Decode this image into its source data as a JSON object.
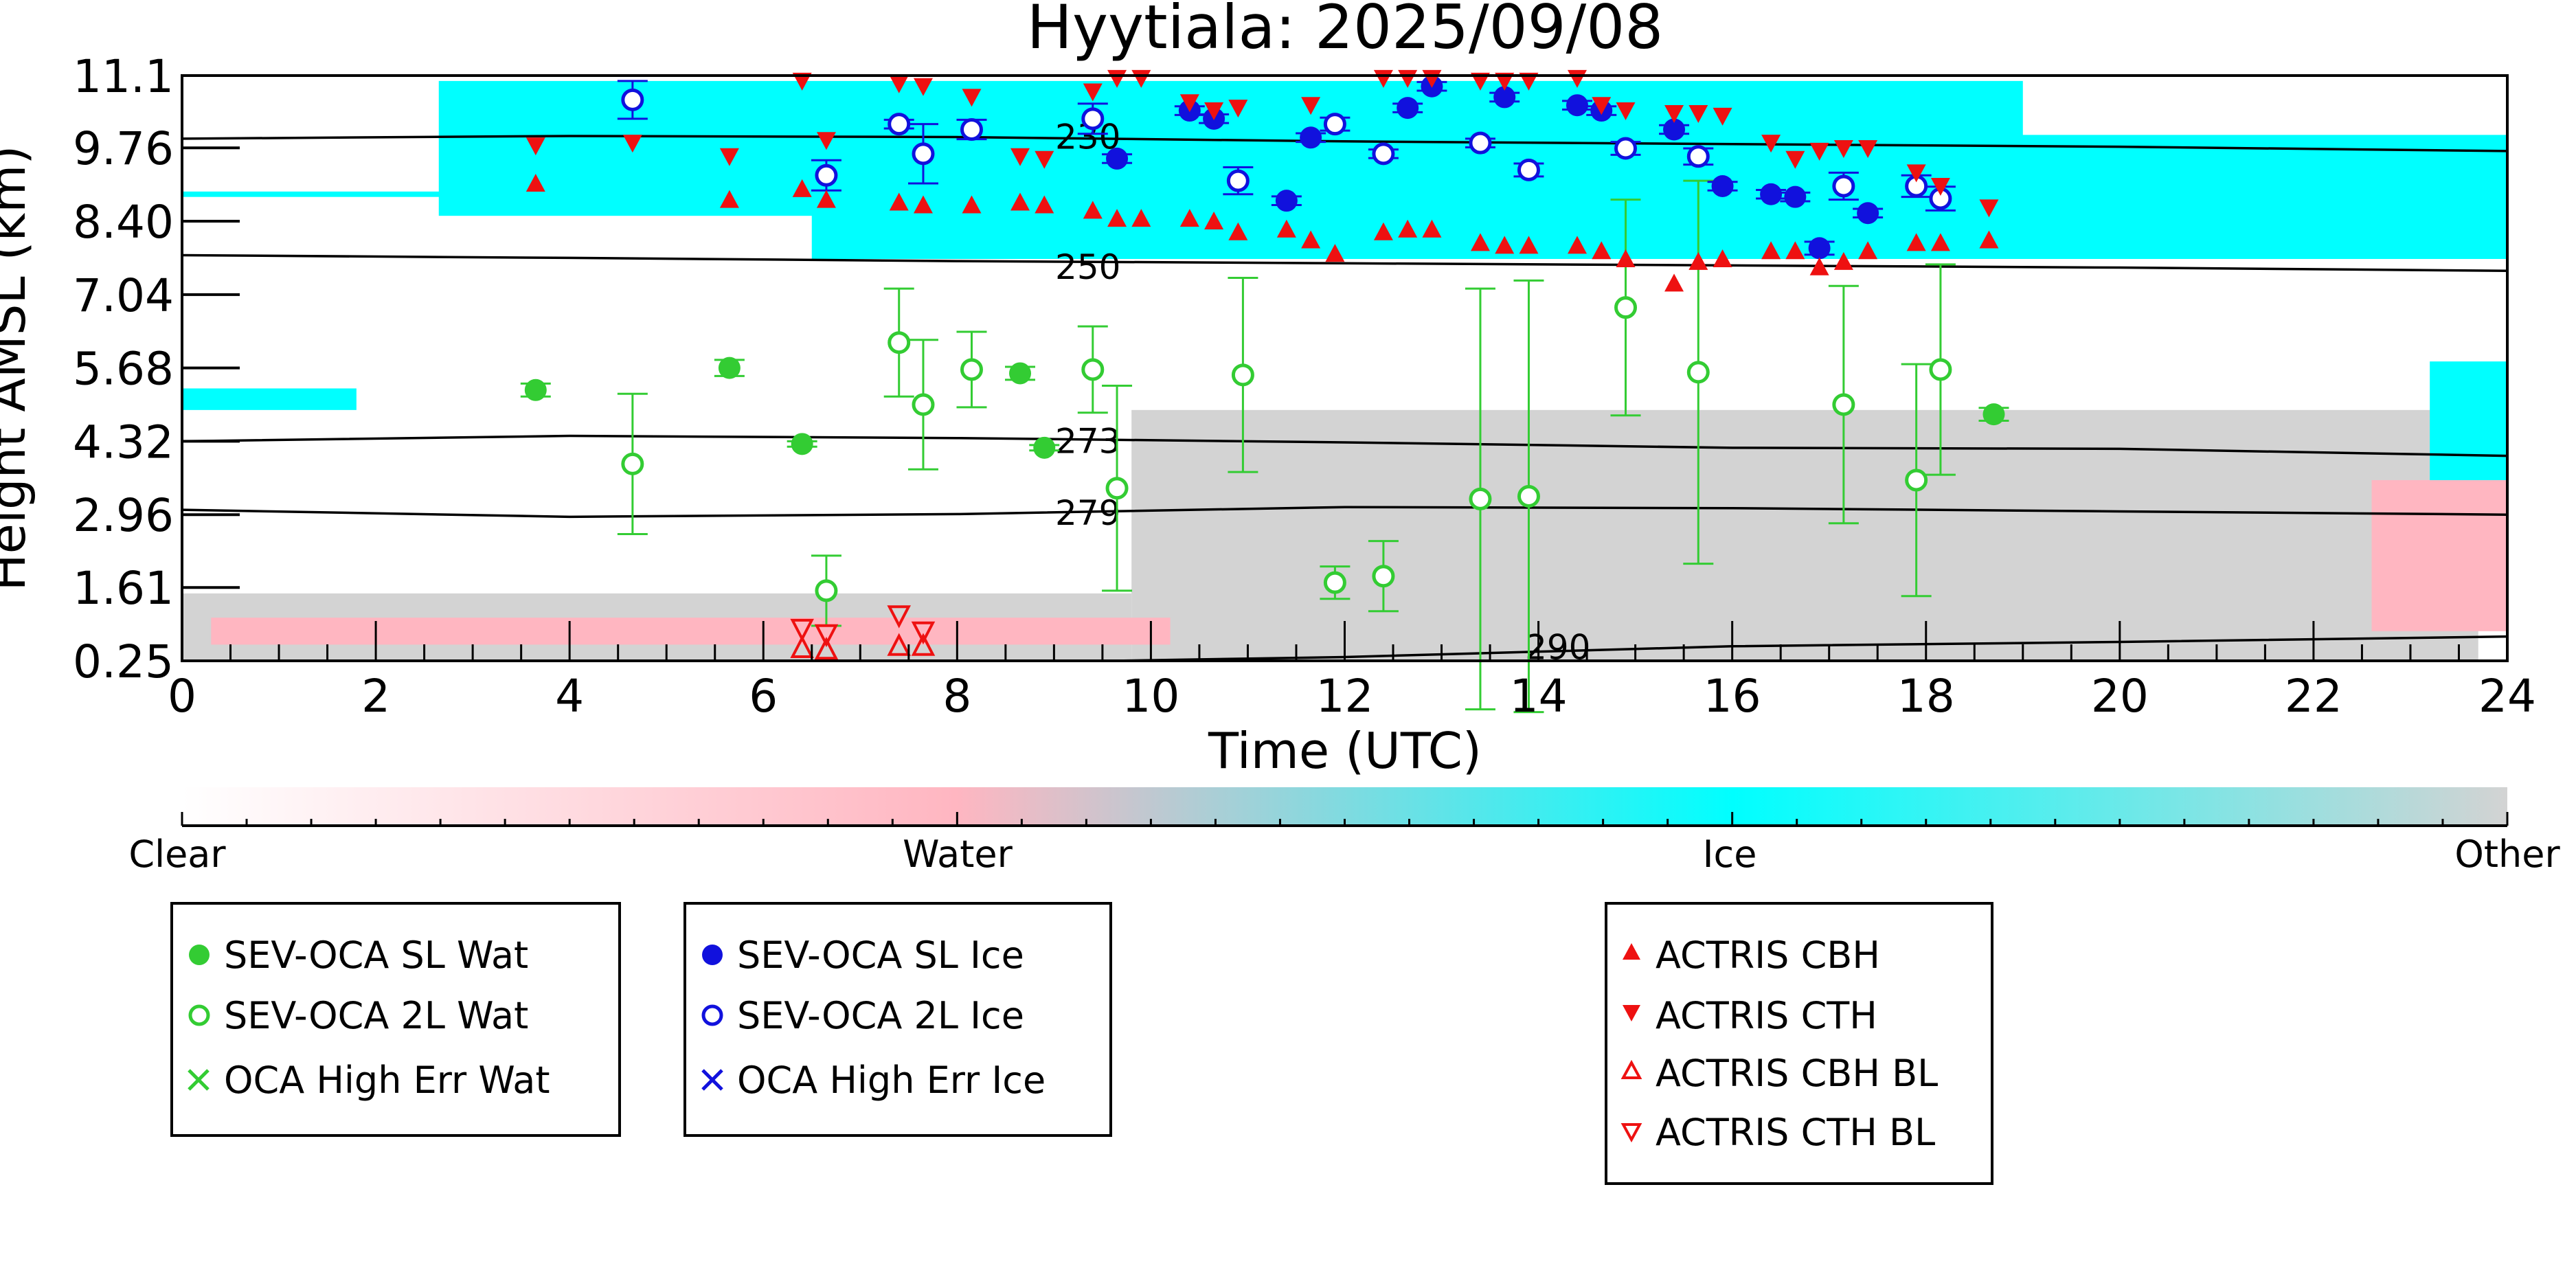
{
  "chart_data": {
    "type": "scatter",
    "title": "Hyytiala: 2025/09/08",
    "xlabel": "Time (UTC)",
    "ylabel": "Height AMSL (km)",
    "xlim": [
      0,
      24
    ],
    "ylim": [
      0.25,
      11.1
    ],
    "x_ticks": [
      "0",
      "2",
      "4",
      "6",
      "8",
      "10",
      "12",
      "14",
      "16",
      "18",
      "20",
      "22",
      "24"
    ],
    "y_ticks": [
      "0.25",
      "1.61",
      "2.96",
      "4.32",
      "5.68",
      "7.04",
      "8.40",
      "9.76",
      "11.1"
    ],
    "background": {
      "type": "classification-curtain",
      "colors": {
        "Clear": "#ffffff",
        "Water": "#ffb6c1",
        "Ice": "#00ffff",
        "Other": "#d3d3d3"
      },
      "ice_regions": [
        {
          "x0": 2.65,
          "x1": 19.0,
          "top": 11.0,
          "bottom": 8.5
        },
        {
          "x0": 6.5,
          "x1": 18.6,
          "top": 10.5,
          "bottom": 7.7
        },
        {
          "x0": 0.0,
          "x1": 2.7,
          "top": 8.95,
          "bottom": 8.85
        },
        {
          "x0": 18.5,
          "x1": 24.0,
          "top": 10.0,
          "bottom": 7.7
        },
        {
          "x0": 0.0,
          "x1": 1.8,
          "top": 5.3,
          "bottom": 4.9
        },
        {
          "x0": 23.2,
          "x1": 24.0,
          "top": 5.8,
          "bottom": 3.6
        }
      ],
      "other_regions": [
        {
          "x0": 9.8,
          "x1": 23.7,
          "top": 4.9,
          "bottom": 0.25
        },
        {
          "x0": 0.0,
          "x1": 9.8,
          "top": 1.5,
          "bottom": 0.25
        }
      ],
      "water_regions": [
        {
          "x0": 0.3,
          "x1": 10.2,
          "top": 1.05,
          "bottom": 0.55
        },
        {
          "x0": 22.6,
          "x1": 24.0,
          "top": 3.6,
          "bottom": 0.8
        }
      ]
    },
    "contours": [
      {
        "label": "230",
        "label_x": 9.35,
        "label_y": 9.96,
        "x": [
          0,
          4,
          8,
          12,
          16,
          20,
          24
        ],
        "y": [
          9.93,
          9.98,
          9.96,
          9.88,
          9.83,
          9.78,
          9.7
        ]
      },
      {
        "label": "250",
        "label_x": 9.35,
        "label_y": 7.55,
        "x": [
          0,
          4,
          8,
          12,
          16,
          20,
          24
        ],
        "y": [
          7.77,
          7.72,
          7.66,
          7.62,
          7.58,
          7.54,
          7.48
        ]
      },
      {
        "label": "273",
        "label_x": 9.35,
        "label_y": 4.32,
        "x": [
          0,
          4,
          8,
          12,
          16,
          20,
          24
        ],
        "y": [
          4.32,
          4.42,
          4.38,
          4.3,
          4.2,
          4.18,
          4.05
        ]
      },
      {
        "label": "279",
        "label_x": 9.35,
        "label_y": 2.99,
        "x": [
          0,
          4,
          8,
          12,
          16,
          20,
          24
        ],
        "y": [
          3.05,
          2.92,
          2.97,
          3.1,
          3.08,
          3.02,
          2.96
        ]
      },
      {
        "label": "290",
        "label_x": 14.2,
        "label_y": 0.5,
        "x": [
          9.6,
          12,
          14,
          16,
          20,
          24
        ],
        "y": [
          0.25,
          0.32,
          0.42,
          0.52,
          0.6,
          0.7
        ]
      }
    ],
    "series": [
      {
        "name": "SEV-OCA SL Wat",
        "color": "#33cc33",
        "marker": "filled-circle",
        "points": [
          [
            3.65,
            5.27,
            0.12
          ],
          [
            5.65,
            5.68,
            0.15
          ],
          [
            6.4,
            4.27,
            0.05
          ],
          [
            8.65,
            5.58,
            0.12
          ],
          [
            8.9,
            4.2,
            0.05
          ],
          [
            18.7,
            4.82,
            0.12
          ]
        ]
      },
      {
        "name": "SEV-OCA 2L Wat",
        "color": "#33cc33",
        "marker": "open-circle",
        "points": [
          [
            4.65,
            3.9,
            1.3
          ],
          [
            6.65,
            1.55,
            0.65
          ],
          [
            7.4,
            6.15,
            1.0
          ],
          [
            7.65,
            5.0,
            1.2
          ],
          [
            8.15,
            5.65,
            0.7
          ],
          [
            9.4,
            5.65,
            0.8
          ],
          [
            9.65,
            3.45,
            1.9
          ],
          [
            10.95,
            5.55,
            1.8
          ],
          [
            11.9,
            1.7,
            0.3
          ],
          [
            12.4,
            1.82,
            0.65
          ],
          [
            13.4,
            3.25,
            3.9
          ],
          [
            13.9,
            3.3,
            4.0
          ],
          [
            14.9,
            6.8,
            2.0
          ],
          [
            15.65,
            5.6,
            3.55
          ],
          [
            17.15,
            5.0,
            2.2
          ],
          [
            17.9,
            3.6,
            2.15
          ],
          [
            18.15,
            5.65,
            1.95
          ]
        ]
      },
      {
        "name": "OCA High Err Wat",
        "color": "#33cc33",
        "marker": "x",
        "points": []
      },
      {
        "name": "SEV-OCA SL Ice",
        "color": "#1111dd",
        "marker": "filled-circle",
        "points": [
          [
            9.65,
            9.56,
            0.08
          ],
          [
            10.4,
            10.45,
            0.08
          ],
          [
            10.65,
            10.3,
            0.08
          ],
          [
            11.4,
            8.78,
            0.08
          ],
          [
            11.65,
            9.95,
            0.08
          ],
          [
            12.65,
            10.5,
            0.08
          ],
          [
            12.9,
            10.9,
            0.08
          ],
          [
            13.65,
            10.7,
            0.08
          ],
          [
            14.4,
            10.55,
            0.08
          ],
          [
            14.65,
            10.45,
            0.08
          ],
          [
            15.4,
            10.1,
            0.08
          ],
          [
            15.9,
            9.05,
            0.08
          ],
          [
            16.4,
            8.9,
            0.08
          ],
          [
            16.65,
            8.85,
            0.08
          ],
          [
            16.9,
            7.9,
            0.12
          ],
          [
            17.4,
            8.55,
            0.08
          ]
        ]
      },
      {
        "name": "SEV-OCA 2L Ice",
        "color": "#1111dd",
        "marker": "open-circle",
        "points": [
          [
            4.65,
            10.65,
            0.35
          ],
          [
            6.65,
            9.25,
            0.28
          ],
          [
            7.4,
            10.2,
            0.08
          ],
          [
            7.65,
            9.65,
            0.55
          ],
          [
            8.15,
            10.1,
            0.18
          ],
          [
            9.4,
            10.3,
            0.28
          ],
          [
            10.9,
            9.15,
            0.25
          ],
          [
            11.9,
            10.2,
            0.12
          ],
          [
            12.4,
            9.65,
            0.08
          ],
          [
            13.4,
            9.85,
            0.08
          ],
          [
            13.9,
            9.35,
            0.12
          ],
          [
            14.9,
            9.75,
            0.12
          ],
          [
            15.65,
            9.6,
            0.15
          ],
          [
            17.15,
            9.05,
            0.25
          ],
          [
            17.9,
            9.05,
            0.2
          ],
          [
            18.15,
            8.82,
            0.22
          ]
        ]
      },
      {
        "name": "OCA High Err Ice",
        "color": "#1111dd",
        "marker": "x",
        "points": []
      },
      {
        "name": "ACTRIS CBH",
        "color": "#ee1111",
        "marker": "triangle-up-filled",
        "x": [
          3.65,
          5.65,
          6.4,
          6.65,
          7.4,
          7.65,
          8.15,
          8.65,
          8.9,
          9.4,
          9.65,
          9.9,
          10.4,
          10.65,
          10.9,
          11.4,
          11.65,
          11.9,
          12.4,
          12.65,
          12.9,
          13.4,
          13.65,
          13.9,
          14.4,
          14.65,
          14.9,
          15.4,
          15.65,
          15.9,
          16.4,
          16.65,
          16.9,
          17.15,
          17.4,
          17.9,
          18.15,
          18.65
        ],
        "y": [
          9.1,
          8.8,
          9.0,
          8.8,
          8.75,
          8.7,
          8.7,
          8.75,
          8.7,
          8.6,
          8.45,
          8.45,
          8.45,
          8.4,
          8.2,
          8.25,
          8.05,
          7.8,
          8.2,
          8.25,
          8.25,
          8.0,
          7.95,
          7.95,
          7.95,
          7.85,
          7.7,
          7.25,
          7.65,
          7.7,
          7.85,
          7.85,
          7.55,
          7.65,
          7.85,
          8.0,
          8.0,
          8.05
        ]
      },
      {
        "name": "ACTRIS CTH",
        "color": "#ee1111",
        "marker": "triangle-down-filled",
        "x": [
          3.65,
          4.65,
          5.65,
          6.4,
          6.65,
          7.4,
          7.65,
          8.15,
          8.65,
          8.9,
          9.4,
          9.65,
          9.9,
          10.4,
          10.65,
          10.9,
          11.65,
          12.4,
          12.65,
          12.9,
          13.4,
          13.65,
          13.9,
          14.4,
          14.65,
          14.9,
          15.4,
          15.65,
          15.9,
          16.4,
          16.65,
          16.9,
          17.15,
          17.4,
          17.9,
          18.15,
          18.65
        ],
        "y": [
          9.8,
          9.85,
          9.6,
          11.0,
          9.9,
          10.95,
          10.9,
          10.7,
          9.6,
          9.55,
          10.8,
          11.05,
          11.05,
          10.6,
          10.45,
          10.5,
          10.55,
          11.05,
          11.05,
          11.05,
          11.0,
          11.0,
          11.0,
          11.05,
          10.55,
          10.45,
          10.4,
          10.4,
          10.35,
          9.85,
          9.55,
          9.7,
          9.75,
          9.75,
          9.3,
          9.05,
          8.65
        ]
      },
      {
        "name": "ACTRIS CBH BL",
        "color": "#ee1111",
        "marker": "triangle-up-open",
        "x": [
          6.4,
          6.65,
          7.4,
          7.65
        ],
        "y": [
          0.48,
          0.45,
          0.52,
          0.52
        ]
      },
      {
        "name": "ACTRIS CTH BL",
        "color": "#ee1111",
        "marker": "triangle-down-open",
        "x": [
          6.4,
          6.65,
          7.4,
          7.65
        ],
        "y": [
          0.85,
          0.75,
          1.1,
          0.8
        ]
      }
    ],
    "colorbar": {
      "labels": [
        "Clear",
        "Water",
        "Ice",
        "Other"
      ],
      "colors": [
        "#ffffff",
        "#ffb6c1",
        "#00ffff",
        "#d3d3d3"
      ]
    },
    "legend": {
      "placement": "below",
      "groups": [
        [
          "SEV-OCA SL Wat",
          "SEV-OCA 2L Wat",
          "OCA High Err Wat"
        ],
        [
          "SEV-OCA SL Ice",
          "SEV-OCA 2L Ice",
          "OCA High Err Ice"
        ],
        [
          "ACTRIS CBH",
          "ACTRIS CTH",
          "ACTRIS CBH BL",
          "ACTRIS CTH BL"
        ]
      ]
    }
  }
}
